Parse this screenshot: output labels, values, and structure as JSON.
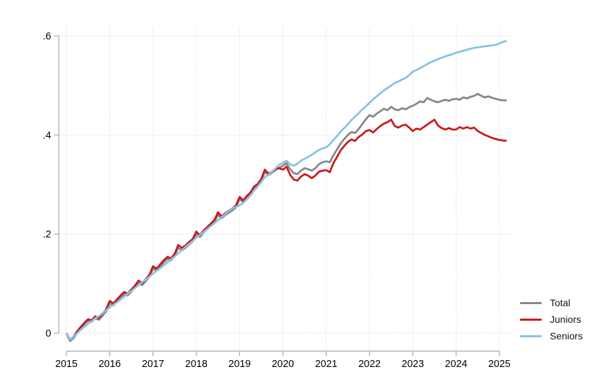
{
  "chart_data": {
    "type": "line",
    "title": "",
    "xlabel": "",
    "ylabel": "",
    "x_start": "2015-01",
    "x_end": "2025-03",
    "x_frequency": "monthly",
    "x_tick_years": [
      2015,
      2016,
      2017,
      2018,
      2019,
      2020,
      2021,
      2022,
      2023,
      2024,
      2025
    ],
    "y_ticks": [
      {
        "value": 0.0,
        "label": "0"
      },
      {
        "value": 0.2,
        "label": ".2"
      },
      {
        "value": 0.4,
        "label": ".4"
      },
      {
        "value": 0.6,
        "label": ".6"
      }
    ],
    "ylim": [
      -0.03,
      0.62
    ],
    "grid": true,
    "legend_position": "right-bottom",
    "series": [
      {
        "name": "Total",
        "color": "#868686",
        "values": [
          0,
          -0.016,
          -0.01,
          0.001,
          0.01,
          0.018,
          0.025,
          0.023,
          0.03,
          0.027,
          0.035,
          0.044,
          0.06,
          0.056,
          0.064,
          0.072,
          0.079,
          0.076,
          0.084,
          0.092,
          0.101,
          0.097,
          0.105,
          0.114,
          0.13,
          0.126,
          0.135,
          0.143,
          0.15,
          0.147,
          0.156,
          0.172,
          0.167,
          0.172,
          0.179,
          0.185,
          0.2,
          0.194,
          0.203,
          0.21,
          0.217,
          0.224,
          0.239,
          0.232,
          0.238,
          0.243,
          0.248,
          0.254,
          0.271,
          0.264,
          0.273,
          0.281,
          0.292,
          0.298,
          0.308,
          0.326,
          0.319,
          0.324,
          0.33,
          0.334,
          0.338,
          0.343,
          0.331,
          0.323,
          0.321,
          0.328,
          0.333,
          0.331,
          0.328,
          0.333,
          0.341,
          0.345,
          0.347,
          0.345,
          0.359,
          0.371,
          0.383,
          0.392,
          0.4,
          0.406,
          0.404,
          0.412,
          0.422,
          0.432,
          0.44,
          0.437,
          0.443,
          0.448,
          0.453,
          0.45,
          0.457,
          0.452,
          0.45,
          0.454,
          0.452,
          0.456,
          0.459,
          0.463,
          0.468,
          0.466,
          0.475,
          0.471,
          0.468,
          0.466,
          0.469,
          0.471,
          0.469,
          0.472,
          0.473,
          0.471,
          0.476,
          0.474,
          0.477,
          0.479,
          0.483,
          0.479,
          0.476,
          0.478,
          0.475,
          0.473,
          0.471,
          0.47,
          0.47
        ]
      },
      {
        "name": "Juniors",
        "color": "#cb181d",
        "values": [
          0,
          -0.013,
          -0.007,
          0.004,
          0.013,
          0.021,
          0.028,
          0.026,
          0.034,
          0.03,
          0.039,
          0.048,
          0.065,
          0.06,
          0.068,
          0.076,
          0.083,
          0.08,
          0.088,
          0.096,
          0.106,
          0.101,
          0.109,
          0.118,
          0.135,
          0.13,
          0.139,
          0.147,
          0.154,
          0.151,
          0.16,
          0.178,
          0.172,
          0.177,
          0.184,
          0.19,
          0.205,
          0.198,
          0.207,
          0.214,
          0.221,
          0.228,
          0.244,
          0.236,
          0.242,
          0.247,
          0.252,
          0.258,
          0.275,
          0.268,
          0.277,
          0.284,
          0.296,
          0.301,
          0.311,
          0.33,
          0.322,
          0.326,
          0.331,
          0.333,
          0.33,
          0.336,
          0.32,
          0.31,
          0.308,
          0.316,
          0.321,
          0.318,
          0.313,
          0.318,
          0.326,
          0.328,
          0.329,
          0.325,
          0.343,
          0.356,
          0.369,
          0.378,
          0.386,
          0.391,
          0.388,
          0.396,
          0.401,
          0.408,
          0.41,
          0.405,
          0.412,
          0.418,
          0.423,
          0.426,
          0.431,
          0.418,
          0.415,
          0.419,
          0.421,
          0.415,
          0.408,
          0.413,
          0.411,
          0.416,
          0.421,
          0.426,
          0.431,
          0.419,
          0.414,
          0.411,
          0.414,
          0.411,
          0.411,
          0.416,
          0.413,
          0.416,
          0.413,
          0.415,
          0.408,
          0.404,
          0.4,
          0.397,
          0.394,
          0.392,
          0.39,
          0.389,
          0.388
        ]
      },
      {
        "name": "Seniors",
        "color": "#87c3e2",
        "values": [
          0,
          -0.013,
          -0.007,
          0,
          0.007,
          0.013,
          0.019,
          0.024,
          0.03,
          0.034,
          0.04,
          0.046,
          0.052,
          0.057,
          0.062,
          0.068,
          0.074,
          0.08,
          0.085,
          0.091,
          0.097,
          0.103,
          0.108,
          0.114,
          0.12,
          0.126,
          0.131,
          0.137,
          0.143,
          0.149,
          0.155,
          0.161,
          0.167,
          0.174,
          0.18,
          0.186,
          0.193,
          0.198,
          0.204,
          0.21,
          0.216,
          0.222,
          0.228,
          0.234,
          0.24,
          0.246,
          0.252,
          0.255,
          0.258,
          0.263,
          0.27,
          0.278,
          0.288,
          0.296,
          0.305,
          0.315,
          0.32,
          0.326,
          0.333,
          0.34,
          0.344,
          0.348,
          0.341,
          0.338,
          0.342,
          0.348,
          0.352,
          0.356,
          0.36,
          0.365,
          0.37,
          0.373,
          0.375,
          0.381,
          0.39,
          0.398,
          0.407,
          0.414,
          0.422,
          0.43,
          0.437,
          0.444,
          0.452,
          0.458,
          0.465,
          0.472,
          0.478,
          0.484,
          0.49,
          0.495,
          0.5,
          0.505,
          0.508,
          0.512,
          0.515,
          0.521,
          0.528,
          0.531,
          0.535,
          0.539,
          0.543,
          0.547,
          0.55,
          0.553,
          0.556,
          0.559,
          0.561,
          0.563,
          0.566,
          0.568,
          0.57,
          0.572,
          0.574,
          0.576,
          0.577,
          0.578,
          0.579,
          0.58,
          0.581,
          0.582,
          0.585,
          0.588,
          0.59
        ]
      }
    ]
  },
  "legend": {
    "entries": [
      {
        "label": "Total"
      },
      {
        "label": "Juniors"
      },
      {
        "label": "Seniors"
      }
    ]
  },
  "style": {
    "background": "#ffffff",
    "grid_color": "#d6d6d6",
    "axis_color": "#a6a6a6",
    "tick_label_color": "#000000"
  }
}
